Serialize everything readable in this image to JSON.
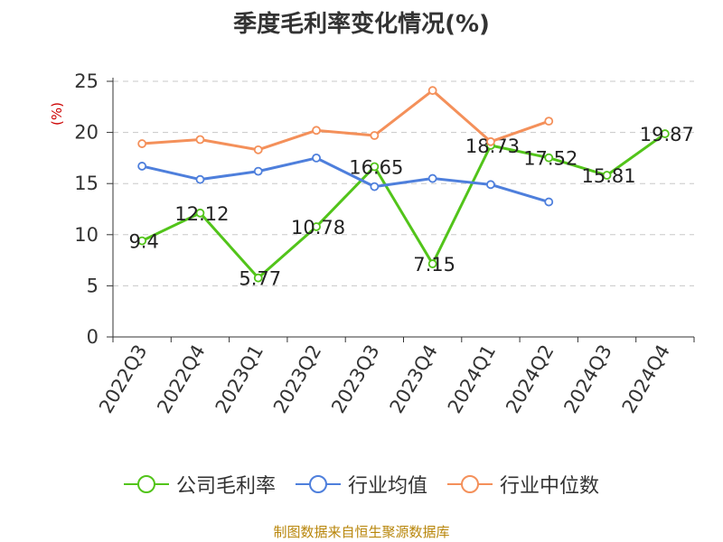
{
  "chart_data": {
    "type": "line",
    "title": "季度毛利率变化情况(%)",
    "ylabel": "(%)",
    "xlabel": "",
    "ylim": [
      0,
      25
    ],
    "yticks": [
      0,
      5,
      10,
      15,
      20,
      25
    ],
    "grid": true,
    "legend_position": "bottom",
    "categories": [
      "2022Q3",
      "2022Q4",
      "2023Q1",
      "2023Q2",
      "2023Q3",
      "2023Q4",
      "2024Q1",
      "2024Q2",
      "2024Q3",
      "2024Q4"
    ],
    "series": [
      {
        "name": "公司毛利率",
        "color": "#52c41a",
        "show_labels": true,
        "values": [
          9.4,
          12.12,
          5.77,
          10.78,
          16.65,
          7.15,
          18.73,
          17.52,
          15.81,
          19.87
        ]
      },
      {
        "name": "行业均值",
        "color": "#4e7fdc",
        "show_labels": false,
        "values": [
          16.7,
          15.4,
          16.2,
          17.5,
          14.7,
          15.5,
          14.9,
          13.2,
          null,
          null
        ]
      },
      {
        "name": "行业中位数",
        "color": "#f4905a",
        "show_labels": false,
        "values": [
          18.9,
          19.3,
          18.3,
          20.2,
          19.7,
          24.1,
          19.1,
          21.1,
          null,
          null
        ]
      }
    ],
    "source": "制图数据来自恒生聚源数据库"
  }
}
